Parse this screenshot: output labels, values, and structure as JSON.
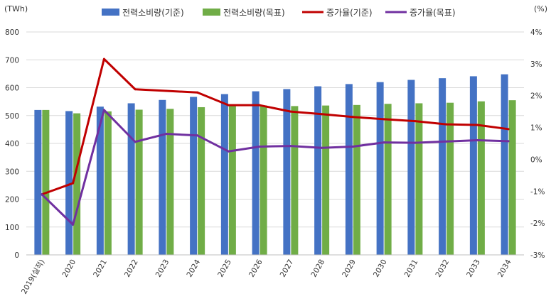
{
  "chart_data": {
    "type": "bar+line",
    "categories": [
      "2019(실적)",
      "2020",
      "2021",
      "2022",
      "2023",
      "2024",
      "2025",
      "2026",
      "2027",
      "2028",
      "2029",
      "2030",
      "2031",
      "2032",
      "2033",
      "2034"
    ],
    "bar_series": [
      {
        "name": "전력소비량(기준)",
        "color": "#4472C4",
        "axis": "left",
        "values": [
          520,
          516,
          532,
          544,
          556,
          567,
          577,
          587,
          595,
          605,
          613,
          620,
          628,
          634,
          641,
          648
        ]
      },
      {
        "name": "전력소비량(목표)",
        "color": "#70AD47",
        "axis": "left",
        "values": [
          520,
          508,
          515,
          521,
          524,
          530,
          536,
          536,
          534,
          536,
          538,
          542,
          544,
          546,
          551,
          555
        ]
      }
    ],
    "line_series": [
      {
        "name": "증가율(기준)",
        "color": "#C00000",
        "axis": "right",
        "values": [
          -1.1,
          -0.75,
          3.15,
          2.2,
          2.15,
          2.1,
          1.7,
          1.7,
          1.5,
          1.42,
          1.33,
          1.26,
          1.2,
          1.1,
          1.08,
          0.95
        ]
      },
      {
        "name": "증가율(목표)",
        "color": "#7030A0",
        "axis": "right",
        "values": [
          -1.1,
          -2.05,
          1.55,
          0.55,
          0.8,
          0.75,
          0.25,
          0.4,
          0.42,
          0.36,
          0.4,
          0.53,
          0.52,
          0.56,
          0.6,
          0.57
        ]
      }
    ],
    "left_axis": {
      "unit": "(TWh)",
      "min": 0,
      "max": 800,
      "step": 100,
      "ticks": [
        "0",
        "100",
        "200",
        "300",
        "400",
        "500",
        "600",
        "700",
        "800"
      ]
    },
    "right_axis": {
      "unit": "(%)",
      "min": -3,
      "max": 4,
      "step": 1,
      "ticks": [
        "-3%",
        "-2%",
        "-1%",
        "0%",
        "1%",
        "2%",
        "3%",
        "4%"
      ]
    },
    "legend": [
      "전력소비량(기준)",
      "전력소비량(목표)",
      "증가율(기준)",
      "증가율(목표)"
    ],
    "grid": true,
    "legend_position": "top"
  }
}
